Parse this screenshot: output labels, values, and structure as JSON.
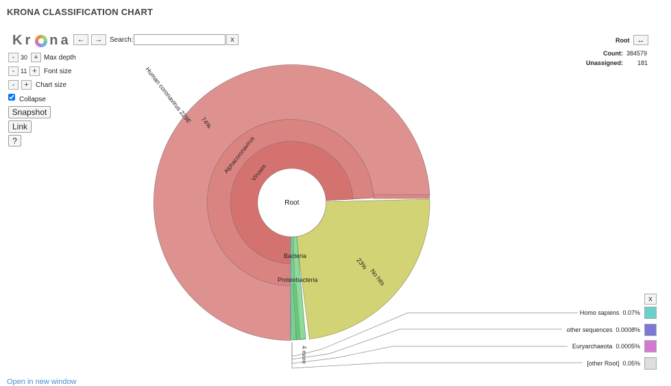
{
  "app": {
    "title": "KRONA CLASSIFICATION CHART"
  },
  "logo": {
    "text_left": "Kr",
    "text_right": "na"
  },
  "nav": {
    "back_icon": "←",
    "forward_icon": "→"
  },
  "search": {
    "label": "Search:",
    "value": "",
    "placeholder": "",
    "clear_label": "x"
  },
  "controls": {
    "max_depth": {
      "minus": "-",
      "value": "30",
      "plus": "+",
      "label": "Max depth"
    },
    "font_size": {
      "minus": "-",
      "value": "11",
      "plus": "+",
      "label": "Font size"
    },
    "chart_size": {
      "minus": "-",
      "plus": "+",
      "label": "Chart size"
    },
    "collapse": {
      "label": "Collapse",
      "checked": true
    },
    "snapshot_label": "Snapshot",
    "link_label": "Link",
    "help_label": "?"
  },
  "details": {
    "node_name": "Root",
    "expand_icon": "↔",
    "count_label": "Count:",
    "count_value": "384579",
    "unassigned_label": "Unassigned:",
    "unassigned_value": "181"
  },
  "chart": {
    "center_label": "Root",
    "labels": {
      "human_coronavirus": "Human coronavirus 229E",
      "human_coronavirus_pct": "74%",
      "alphacoronavirus": "Alphacoronavirus",
      "viruses": "Viruses",
      "no_hits": "No hits",
      "no_hits_pct": "23%",
      "bacteria": "Bacteria",
      "proteobacteria": "Proteobacteria",
      "more": "4 more"
    },
    "colors": {
      "viruses": "#d47270",
      "alphacoronavirus": "#da8482",
      "human_coronavirus": "#dd9290",
      "no_hits": "#d1d375",
      "bacteria": "#7bd08a",
      "proteobacteria": "#8fd99b"
    }
  },
  "chart_data": {
    "type": "sunburst",
    "center": "Root",
    "total_count": 384579,
    "nodes": [
      {
        "name": "Viruses",
        "parent": "Root",
        "percent": 74
      },
      {
        "name": "Alphacoronavirus",
        "parent": "Viruses",
        "percent": 74
      },
      {
        "name": "Human coronavirus 229E",
        "parent": "Alphacoronavirus",
        "percent": 74
      },
      {
        "name": "No hits",
        "parent": "Root",
        "percent": 23
      },
      {
        "name": "Bacteria",
        "parent": "Root"
      },
      {
        "name": "Proteobacteria",
        "parent": "Bacteria"
      }
    ],
    "small_entries": [
      {
        "name": "Homo sapiens",
        "percent": 0.07
      },
      {
        "name": "other sequences",
        "percent": 0.0008
      },
      {
        "name": "Euryarchaeota",
        "percent": 0.0005
      },
      {
        "name": "[other Root]",
        "percent": 0.05
      }
    ]
  },
  "legend": {
    "close_label": "x",
    "items": [
      {
        "label": "Homo sapiens",
        "value": "0.07%",
        "color": "#6dcfc9"
      },
      {
        "label": "other sequences",
        "value": "0.0008%",
        "color": "#7d78d6"
      },
      {
        "label": "Euryarchaeota",
        "value": "0.0005%",
        "color": "#d179d0"
      },
      {
        "label": "[other Root]",
        "value": "0.05%",
        "color": "#dedede"
      }
    ]
  },
  "footer": {
    "open_link": "Open in new window"
  }
}
